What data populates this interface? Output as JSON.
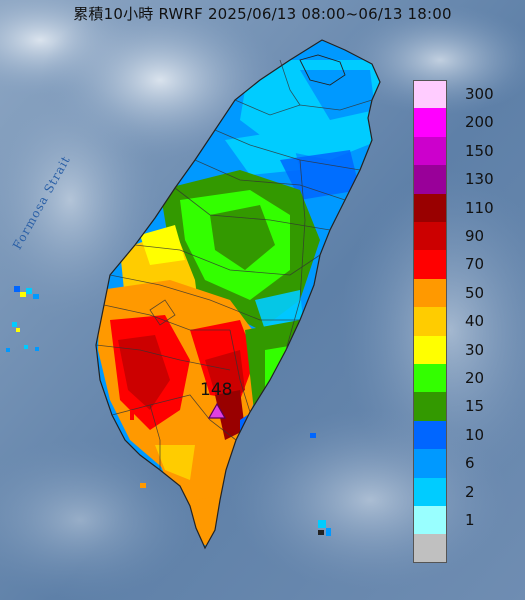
{
  "title": "累積10小時 RWRF 2025/06/13 08:00~06/13 18:00",
  "strait_label": "Formosa Strait",
  "max_marker": {
    "value": "148",
    "symbol": "triangle-marker-icon",
    "color": "#e040e0"
  },
  "legend": [
    {
      "label": "300",
      "color": "#ffccff"
    },
    {
      "label": "200",
      "color": "#ff00ff"
    },
    {
      "label": "150",
      "color": "#cc00cc"
    },
    {
      "label": "130",
      "color": "#990099"
    },
    {
      "label": "110",
      "color": "#990000"
    },
    {
      "label": "90",
      "color": "#cc0000"
    },
    {
      "label": "70",
      "color": "#ff0000"
    },
    {
      "label": "50",
      "color": "#ff9900"
    },
    {
      "label": "40",
      "color": "#ffcc00"
    },
    {
      "label": "30",
      "color": "#ffff00"
    },
    {
      "label": "20",
      "color": "#33ff00"
    },
    {
      "label": "15",
      "color": "#339900"
    },
    {
      "label": "10",
      "color": "#0066ff"
    },
    {
      "label": "6",
      "color": "#0099ff"
    },
    {
      "label": "2",
      "color": "#00ccff"
    },
    {
      "label": "1",
      "color": "#99ffff"
    },
    {
      "label": "",
      "color": "#c0c0c0"
    }
  ],
  "colors": {
    "sea": "#5d7fa8",
    "cloud": "#b9c8da",
    "land_outline": "#222222"
  }
}
